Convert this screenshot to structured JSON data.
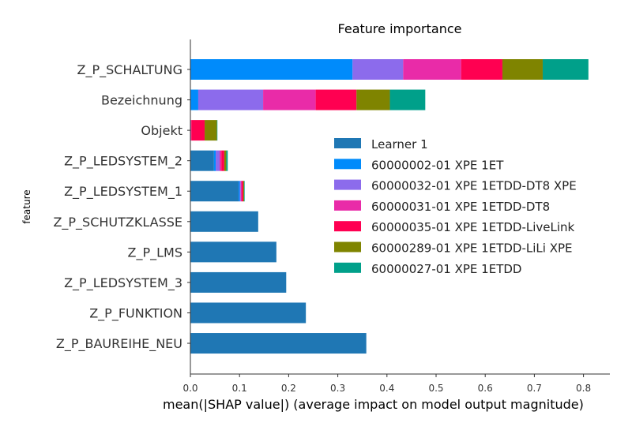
{
  "chart_data": {
    "type": "bar",
    "orientation": "horizontal",
    "stacked": true,
    "title": "Feature importance",
    "xlabel": "mean(|SHAP value|) (average impact on model output magnitude)",
    "ylabel": "feature",
    "xlim": [
      0,
      0.85
    ],
    "xticks": [
      0.0,
      0.1,
      0.2,
      0.3,
      0.4,
      0.5,
      0.6,
      0.7,
      0.8
    ],
    "xtick_labels": [
      "0.0",
      "0.1",
      "0.2",
      "0.3",
      "0.4",
      "0.5",
      "0.6",
      "0.7",
      "0.8"
    ],
    "legend_position": "center-right",
    "categories": [
      "Z_P_SCHALTUNG",
      "Bezeichnung",
      "Objekt",
      "Z_P_LEDSYSTEM_2",
      "Z_P_LEDSYSTEM_1",
      "Z_P_SCHUTZKLASSE",
      "Z_P_LMS",
      "Z_P_LEDSYSTEM_3",
      "Z_P_FUNKTION",
      "Z_P_BAUREIHE_NEU"
    ],
    "series": [
      {
        "name": "Learner 1",
        "color": "#1f77b4",
        "values": [
          0,
          0,
          0,
          0.048,
          0.098,
          0.138,
          0.175,
          0.195,
          0.235,
          0.358
        ]
      },
      {
        "name": "60000002-01 XPE 1ET",
        "color": "#008bfb",
        "values": [
          0.33,
          0.016,
          0,
          0.0035,
          0.0025,
          0,
          0,
          0,
          0,
          0
        ]
      },
      {
        "name": "60000032-01 XPE 1ETDD-DT8 XPE",
        "color": "#8c6bec",
        "values": [
          0.103,
          0.132,
          0,
          0.008,
          0.002,
          0,
          0,
          0,
          0,
          0
        ]
      },
      {
        "name": "60000031-01 XPE 1ETDD-DT8",
        "color": "#e92ba8",
        "values": [
          0.118,
          0.107,
          0.002,
          0.0035,
          0.002,
          0,
          0,
          0,
          0,
          0
        ]
      },
      {
        "name": "60000035-01 XPE 1ETDD-LiveLink",
        "color": "#ff0051",
        "values": [
          0.084,
          0.083,
          0.027,
          0.006,
          0.003,
          0,
          0,
          0,
          0,
          0
        ]
      },
      {
        "name": "60000289-01 XPE 1ETDD-LiLi XPE",
        "color": "#7f8400",
        "values": [
          0.082,
          0.068,
          0.025,
          0.004,
          0.002,
          0,
          0,
          0,
          0,
          0
        ]
      },
      {
        "name": "60000027-01 XPE 1ETDD",
        "color": "#00a08a",
        "values": [
          0.093,
          0.072,
          0.001,
          0.003,
          0.001,
          0,
          0,
          0,
          0,
          0
        ]
      }
    ]
  }
}
